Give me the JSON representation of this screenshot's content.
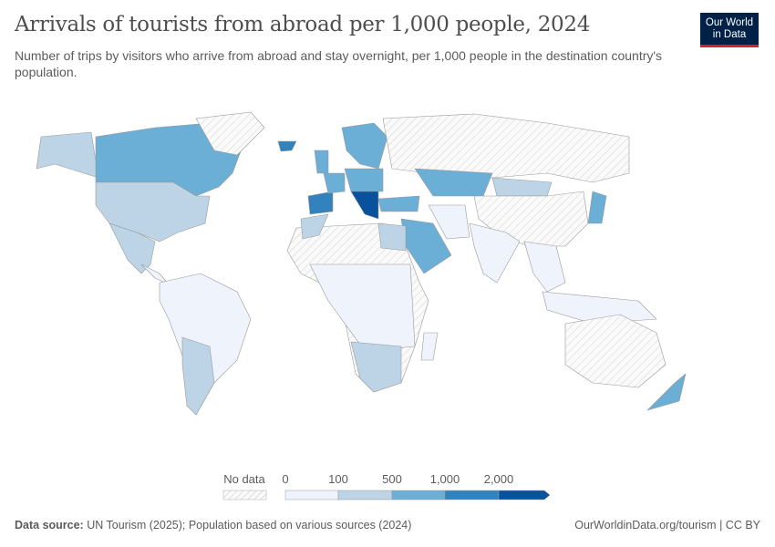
{
  "header": {
    "title": "Arrivals of tourists from abroad per 1,000 people, 2024",
    "subtitle": "Number of trips by visitors who arrive from abroad and stay overnight, per 1,000 people in the destination country's population.",
    "logo_line1": "Our World",
    "logo_line2": "in Data"
  },
  "legend": {
    "no_data_label": "No data",
    "tick_labels": [
      "0",
      "100",
      "500",
      "1,000",
      "2,000"
    ],
    "bin_colors": [
      "#eef3fc",
      "#bcd4e6",
      "#6baed6",
      "#3182bd",
      "#08519c"
    ],
    "no_data_color": "#e6e6e6"
  },
  "map": {
    "ocean_color": "#ffffff",
    "regions": [
      {
        "name": "Alaska",
        "bin": 1
      },
      {
        "name": "Canada",
        "bin": 2
      },
      {
        "name": "United States",
        "bin": 1
      },
      {
        "name": "Mexico",
        "bin": 1
      },
      {
        "name": "Greenland",
        "bin": -1
      },
      {
        "name": "Central America",
        "bin": 0
      },
      {
        "name": "South America",
        "bin": 0
      },
      {
        "name": "Argentina and Chile",
        "bin": 1
      },
      {
        "name": "Iberia",
        "bin": 3
      },
      {
        "name": "France",
        "bin": 2
      },
      {
        "name": "United Kingdom",
        "bin": 2
      },
      {
        "name": "Iceland",
        "bin": 3
      },
      {
        "name": "Scandinavia",
        "bin": 2
      },
      {
        "name": "Central Europe",
        "bin": 2
      },
      {
        "name": "Balkans and Greece",
        "bin": 4
      },
      {
        "name": "Russia",
        "bin": -1
      },
      {
        "name": "Kazakhstan",
        "bin": 2
      },
      {
        "name": "Turkey",
        "bin": 2
      },
      {
        "name": "Mongolia",
        "bin": 1
      },
      {
        "name": "China",
        "bin": -1
      },
      {
        "name": "Japan",
        "bin": 2
      },
      {
        "name": "Saudi Arabia and Gulf",
        "bin": 2
      },
      {
        "name": "Iran",
        "bin": 0
      },
      {
        "name": "India",
        "bin": 0
      },
      {
        "name": "Southeast Asia",
        "bin": 0
      },
      {
        "name": "Indonesia",
        "bin": 0
      },
      {
        "name": "North Africa",
        "bin": -1
      },
      {
        "name": "Egypt",
        "bin": 1
      },
      {
        "name": "Morocco",
        "bin": 1
      },
      {
        "name": "Sub-Saharan Africa",
        "bin": 0
      },
      {
        "name": "Southern Africa",
        "bin": 1
      },
      {
        "name": "Madagascar",
        "bin": 0
      },
      {
        "name": "Australia",
        "bin": -1
      },
      {
        "name": "New Zealand",
        "bin": 2
      }
    ]
  },
  "footer": {
    "source_label": "Data source:",
    "source_text": "UN Tourism (2025); Population based on various sources (2024)",
    "url": "OurWorldinData.org/tourism | CC BY"
  }
}
